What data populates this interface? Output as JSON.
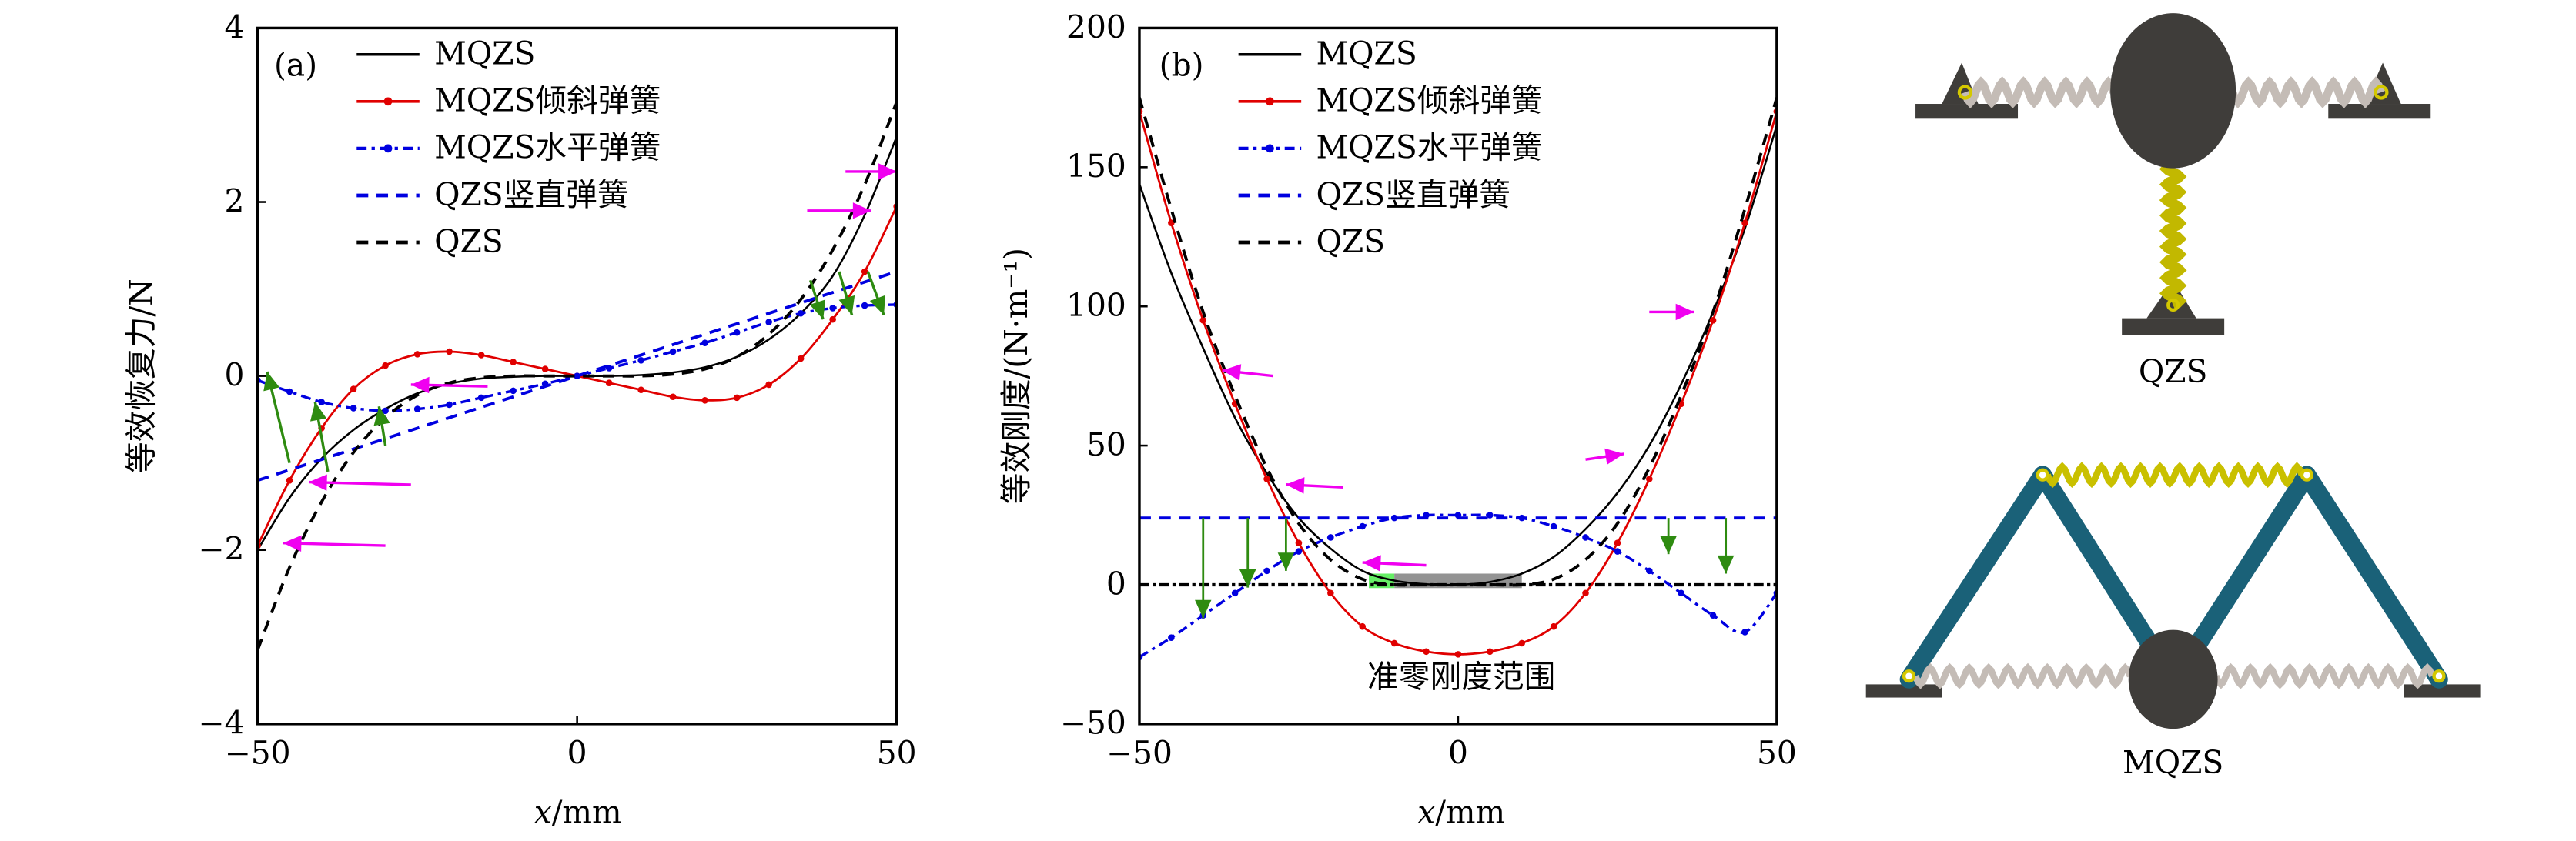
{
  "chart_data": [
    {
      "type": "line",
      "panel": "(a)",
      "xlabel": "x/mm",
      "ylabel": "等效恢复力/N",
      "xlim": [
        -50,
        50
      ],
      "ylim": [
        -4,
        4
      ],
      "xticks": [
        -50,
        0,
        50
      ],
      "yticks": [
        -4,
        -2,
        0,
        2,
        4
      ],
      "grid": false,
      "legend_position": "top-left",
      "x": [
        -50,
        -45,
        -40,
        -35,
        -30,
        -25,
        -20,
        -15,
        -10,
        -5,
        0,
        5,
        10,
        15,
        20,
        25,
        30,
        35,
        40,
        45,
        50
      ],
      "series": [
        {
          "name": "MQZS",
          "color": "#000000",
          "style": "solid",
          "values": [
            -2.0,
            -1.4,
            -0.95,
            -0.62,
            -0.38,
            -0.2,
            -0.09,
            -0.03,
            -0.01,
            0.0,
            0.0,
            0.0,
            0.01,
            0.04,
            0.1,
            0.22,
            0.42,
            0.72,
            1.15,
            1.85,
            2.75
          ]
        },
        {
          "name": "MQZS倾斜弹簧",
          "color": "#e00000",
          "style": "solid-dot",
          "values": [
            -1.95,
            -1.2,
            -0.6,
            -0.15,
            0.12,
            0.25,
            0.28,
            0.24,
            0.16,
            0.08,
            0.0,
            -0.08,
            -0.16,
            -0.24,
            -0.28,
            -0.25,
            -0.1,
            0.2,
            0.65,
            1.2,
            1.95
          ]
        },
        {
          "name": "MQZS水平弹簧",
          "color": "#0000e0",
          "style": "dashdot-dot",
          "values": [
            -0.05,
            -0.18,
            -0.3,
            -0.37,
            -0.4,
            -0.38,
            -0.33,
            -0.25,
            -0.17,
            -0.09,
            0.0,
            0.09,
            0.18,
            0.28,
            0.38,
            0.5,
            0.62,
            0.72,
            0.78,
            0.81,
            0.82
          ]
        },
        {
          "name": "QZS竖直弹簧",
          "color": "#0000e0",
          "style": "dashed",
          "values": [
            -1.2,
            -1.08,
            -0.96,
            -0.84,
            -0.72,
            -0.6,
            -0.48,
            -0.36,
            -0.24,
            -0.12,
            0.0,
            0.12,
            0.24,
            0.36,
            0.48,
            0.6,
            0.72,
            0.84,
            0.96,
            1.08,
            1.2
          ]
        },
        {
          "name": "QZS",
          "color": "#000000",
          "style": "dashed",
          "values": [
            -3.15,
            -2.2,
            -1.45,
            -0.88,
            -0.48,
            -0.22,
            -0.08,
            -0.02,
            0.0,
            0.0,
            0.0,
            0.0,
            0.0,
            0.02,
            0.08,
            0.22,
            0.48,
            0.88,
            1.45,
            2.2,
            3.15
          ]
        }
      ],
      "annotations": {
        "magenta_arrows": "pointing left on the negative side, right on the positive side",
        "green_arrows": "upward at x≈-48,-40,-32 and downward at x≈38,42,47"
      }
    },
    {
      "type": "line",
      "panel": "(b)",
      "xlabel": "x/mm",
      "ylabel": "等效刚度/(N·m⁻¹)",
      "xlim": [
        -50,
        50
      ],
      "ylim": [
        -50,
        200
      ],
      "xticks": [
        -50,
        0,
        50
      ],
      "yticks": [
        -50,
        0,
        50,
        100,
        150,
        200
      ],
      "grid": false,
      "legend_position": "top-left",
      "x": [
        -50,
        -45,
        -40,
        -35,
        -30,
        -25,
        -20,
        -15,
        -10,
        -5,
        0,
        5,
        10,
        15,
        20,
        25,
        30,
        35,
        40,
        45,
        50
      ],
      "series": [
        {
          "name": "MQZS",
          "color": "#000000",
          "style": "solid",
          "values": [
            144,
            112,
            85,
            60,
            40,
            24,
            13,
            5,
            1.5,
            0.2,
            0,
            1,
            4,
            10,
            20,
            33,
            50,
            72,
            98,
            128,
            165
          ]
        },
        {
          "name": "MQZS倾斜弹簧",
          "color": "#e00000",
          "style": "solid-dot",
          "values": [
            170,
            130,
            95,
            65,
            38,
            15,
            -3,
            -15,
            -21,
            -24,
            -25,
            -24,
            -21,
            -15,
            -3,
            15,
            38,
            65,
            95,
            130,
            170
          ]
        },
        {
          "name": "MQZS水平弹簧",
          "color": "#0000e0",
          "style": "dashdot-dot",
          "values": [
            -26,
            -19,
            -11,
            -3,
            5,
            12,
            17,
            21,
            24,
            25,
            25,
            25,
            24,
            21,
            17,
            12,
            5,
            -3,
            -11,
            -17,
            -3
          ]
        },
        {
          "name": "QZS竖直弹簧",
          "color": "#0000e0",
          "style": "dashed",
          "values": [
            24,
            24,
            24,
            24,
            24,
            24,
            24,
            24,
            24,
            24,
            24,
            24,
            24,
            24,
            24,
            24,
            24,
            24,
            24,
            24,
            24
          ]
        },
        {
          "name": "QZS",
          "color": "#000000",
          "style": "dashed",
          "values": [
            175,
            135,
            98,
            68,
            42,
            22,
            9,
            2,
            0,
            0,
            0,
            0,
            0,
            2,
            9,
            22,
            42,
            68,
            98,
            135,
            175
          ]
        }
      ],
      "zero_line": {
        "value": 0,
        "style": "dashdot",
        "color": "#000000"
      },
      "annotation_text": "准零刚度范围",
      "shaded_range": {
        "green_x": [
          -14,
          -10
        ],
        "gray_x": [
          -10,
          10
        ],
        "y": [
          0,
          4
        ]
      }
    }
  ],
  "panel_a": {
    "tag": "(a)",
    "ylabel": "等效恢复力/N",
    "xlabel_var": "x",
    "xlabel_unit": "/mm",
    "yticks": [
      "4",
      "2",
      "0",
      "−2",
      "−4"
    ],
    "xticks": [
      "−50",
      "0",
      "50"
    ]
  },
  "panel_b": {
    "tag": "(b)",
    "ylabel": "等效刚度/(N·m⁻¹)",
    "xlabel_var": "x",
    "xlabel_unit": "/mm",
    "yticks": [
      "200",
      "150",
      "100",
      "50",
      "0",
      "−50"
    ],
    "xticks": [
      "−50",
      "0",
      "50"
    ],
    "annotation": "准零刚度范围"
  },
  "legend": [
    {
      "label": "MQZS",
      "color": "#000000",
      "style": "solid"
    },
    {
      "label": "MQZS倾斜弹簧",
      "color": "#e00000",
      "style": "solid-dot"
    },
    {
      "label": "MQZS水平弹簧",
      "color": "#0000e0",
      "style": "dashdot-dot"
    },
    {
      "label": "QZS竖直弹簧",
      "color": "#0000e0",
      "style": "dashed"
    },
    {
      "label": "QZS",
      "color": "#000000",
      "style": "dashed"
    }
  ],
  "schematics": {
    "top_label": "QZS",
    "bottom_label": "MQZS",
    "colors": {
      "mass": "#3f3d3a",
      "base": "#3f3d3a",
      "link": "#1a6178",
      "spring_gray": "#bdb7b2",
      "spring_yellow": "#c9c000",
      "pin": "#d4c800"
    }
  },
  "colors": {
    "arrow_magenta": "#f000f0",
    "arrow_green": "#2e8b10",
    "range_green": "#66ee66",
    "range_gray": "#808080"
  }
}
